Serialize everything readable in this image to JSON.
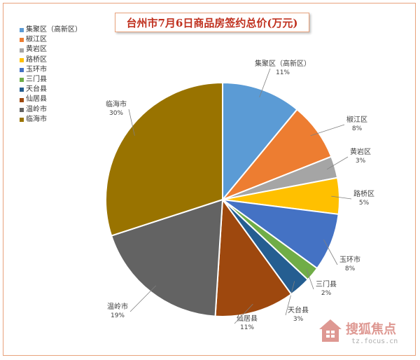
{
  "chart_data": {
    "type": "pie",
    "title": "台州市7月6日商品房签约总价(万元)",
    "legend_position": "top-left",
    "slices": [
      {
        "name": "椒江区",
        "label_lines": [
          "椒江区",
          "8%"
        ],
        "value": 8,
        "color": "#ed7d31"
      },
      {
        "name": "黄岩区",
        "label_lines": [
          "黄岩区",
          "3%"
        ],
        "value": 3,
        "color": "#a5a5a5"
      },
      {
        "name": "路桥区",
        "label_lines": [
          "路桥区",
          "5%"
        ],
        "value": 5,
        "color": "#ffc000"
      },
      {
        "name": "玉环市",
        "label_lines": [
          "玉环市",
          "8%"
        ],
        "value": 8,
        "color": "#4472c4"
      },
      {
        "name": "三门县",
        "label_lines": [
          "三门县",
          "2%"
        ],
        "value": 2,
        "color": "#70ad47"
      },
      {
        "name": "天台县",
        "label_lines": [
          "天台县",
          "3%"
        ],
        "value": 3,
        "color": "#255e91"
      },
      {
        "name": "仙居县",
        "label_lines": [
          "仙居县",
          "11%"
        ],
        "value": 11,
        "color": "#9e480e"
      },
      {
        "name": "温岭市",
        "label_lines": [
          "温岭市",
          "19%"
        ],
        "value": 19,
        "color": "#636363"
      },
      {
        "name": "临海市",
        "label_lines": [
          "临海市",
          "30%"
        ],
        "value": 30,
        "color": "#997300"
      },
      {
        "name": "集聚区（高新区）",
        "label_lines": [
          "集聚区（高新区）",
          "11%"
        ],
        "value": 11,
        "color": "#5b9bd5"
      }
    ],
    "legend": [
      {
        "label": "集聚区（高新区）",
        "color": "#5b9bd5"
      },
      {
        "label": "椒江区",
        "color": "#ed7d31"
      },
      {
        "label": "黄岩区",
        "color": "#a5a5a5"
      },
      {
        "label": "路桥区",
        "color": "#ffc000"
      },
      {
        "label": "玉环市",
        "color": "#4472c4"
      },
      {
        "label": "三门县",
        "color": "#70ad47"
      },
      {
        "label": "天台县",
        "color": "#255e91"
      },
      {
        "label": "仙居县",
        "color": "#9e480e"
      },
      {
        "label": "温岭市",
        "color": "#636363"
      },
      {
        "label": "临海市",
        "color": "#997300"
      }
    ]
  },
  "watermark": {
    "brand": "搜狐焦点",
    "domain": "tz.focus.cn"
  }
}
